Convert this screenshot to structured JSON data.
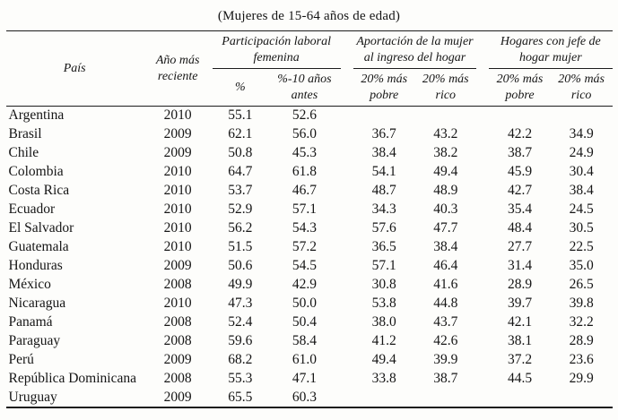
{
  "title": "(Mujeres de 15-64 años de edad)",
  "table": {
    "col_pais": "País",
    "col_anio": "Año más reciente",
    "groups": [
      {
        "label": "Participación laboral femenina",
        "cols": [
          "%",
          "%-10 años antes"
        ]
      },
      {
        "label": "Aportación de la mujer al ingreso del hogar",
        "cols": [
          "20% más pobre",
          "20% más rico"
        ]
      },
      {
        "label": "Hogares con jefe de hogar mujer",
        "cols": [
          "20% más pobre",
          "20% más rico"
        ]
      }
    ],
    "rows": [
      [
        "Argentina",
        "2010",
        "55.1",
        "52.6",
        "",
        "",
        "",
        ""
      ],
      [
        "Brasil",
        "2009",
        "62.1",
        "56.0",
        "36.7",
        "43.2",
        "42.2",
        "34.9"
      ],
      [
        "Chile",
        "2009",
        "50.8",
        "45.3",
        "38.4",
        "38.2",
        "38.7",
        "24.9"
      ],
      [
        "Colombia",
        "2010",
        "64.7",
        "61.8",
        "54.1",
        "49.4",
        "45.9",
        "30.4"
      ],
      [
        "Costa Rica",
        "2010",
        "53.7",
        "46.7",
        "48.7",
        "48.9",
        "42.7",
        "38.4"
      ],
      [
        "Ecuador",
        "2010",
        "52.9",
        "57.1",
        "34.3",
        "40.3",
        "35.4",
        "24.5"
      ],
      [
        "El Salvador",
        "2010",
        "56.2",
        "54.3",
        "57.6",
        "47.7",
        "48.4",
        "30.5"
      ],
      [
        "Guatemala",
        "2010",
        "51.5",
        "57.2",
        "36.5",
        "38.4",
        "27.7",
        "22.5"
      ],
      [
        "Honduras",
        "2009",
        "50.6",
        "54.5",
        "57.1",
        "46.4",
        "31.4",
        "35.0"
      ],
      [
        "México",
        "2008",
        "49.9",
        "42.9",
        "30.8",
        "41.6",
        "28.9",
        "26.5"
      ],
      [
        "Nicaragua",
        "2010",
        "47.3",
        "50.0",
        "53.8",
        "44.8",
        "39.7",
        "39.8"
      ],
      [
        "Panamá",
        "2008",
        "52.4",
        "50.4",
        "38.0",
        "43.7",
        "42.1",
        "32.2"
      ],
      [
        "Paraguay",
        "2008",
        "59.6",
        "58.4",
        "41.2",
        "42.6",
        "38.1",
        "28.9"
      ],
      [
        "Perú",
        "2009",
        "68.2",
        "61.0",
        "49.4",
        "39.9",
        "37.2",
        "23.6"
      ],
      [
        "República Dominicana",
        "2008",
        "55.3",
        "47.1",
        "33.8",
        "38.7",
        "44.5",
        "29.9"
      ],
      [
        "Uruguay",
        "2009",
        "65.5",
        "60.3",
        "",
        "",
        "",
        ""
      ]
    ]
  },
  "colors": {
    "text": "#151515",
    "rule": "#1c1c1c",
    "background": "#fdfdfb"
  }
}
